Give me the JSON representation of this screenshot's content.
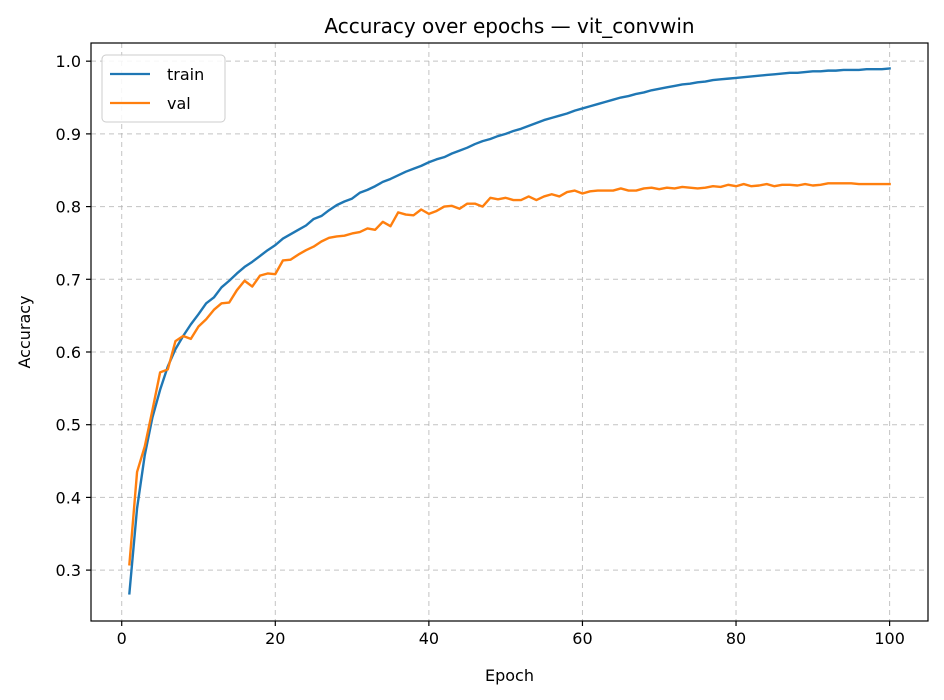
{
  "chart_data": {
    "type": "line",
    "title": "Accuracy over epochs — vit_convwin",
    "xlabel": "Epoch",
    "ylabel": "Accuracy",
    "xlim": [
      -4,
      105
    ],
    "ylim": [
      0.23,
      1.025
    ],
    "xticks": [
      0,
      20,
      40,
      60,
      80,
      100
    ],
    "yticks": [
      0.3,
      0.4,
      0.5,
      0.6,
      0.7,
      0.8,
      0.9,
      1.0
    ],
    "ytick_labels": [
      "0.3",
      "0.4",
      "0.5",
      "0.6",
      "0.7",
      "0.8",
      "0.9",
      "1.0"
    ],
    "grid": true,
    "legend_position": "top-left",
    "x": [
      1,
      2,
      3,
      4,
      5,
      6,
      7,
      8,
      9,
      10,
      11,
      12,
      13,
      14,
      15,
      16,
      17,
      18,
      19,
      20,
      21,
      22,
      23,
      24,
      25,
      26,
      27,
      28,
      29,
      30,
      31,
      32,
      33,
      34,
      35,
      36,
      37,
      38,
      39,
      40,
      41,
      42,
      43,
      44,
      45,
      46,
      47,
      48,
      49,
      50,
      51,
      52,
      53,
      54,
      55,
      56,
      57,
      58,
      59,
      60,
      61,
      62,
      63,
      64,
      65,
      66,
      67,
      68,
      69,
      70,
      71,
      72,
      73,
      74,
      75,
      76,
      77,
      78,
      79,
      80,
      81,
      82,
      83,
      84,
      85,
      86,
      87,
      88,
      89,
      90,
      91,
      92,
      93,
      94,
      95,
      96,
      97,
      98,
      99,
      100
    ],
    "series": [
      {
        "name": "train",
        "color": "#1f77b4",
        "values": [
          0.268,
          0.385,
          0.458,
          0.51,
          0.548,
          0.58,
          0.604,
          0.622,
          0.638,
          0.652,
          0.667,
          0.675,
          0.689,
          0.698,
          0.708,
          0.717,
          0.724,
          0.732,
          0.74,
          0.747,
          0.756,
          0.762,
          0.768,
          0.774,
          0.783,
          0.787,
          0.795,
          0.802,
          0.807,
          0.811,
          0.819,
          0.823,
          0.828,
          0.834,
          0.838,
          0.843,
          0.848,
          0.852,
          0.856,
          0.861,
          0.865,
          0.868,
          0.873,
          0.877,
          0.881,
          0.886,
          0.89,
          0.893,
          0.897,
          0.9,
          0.904,
          0.907,
          0.911,
          0.915,
          0.919,
          0.922,
          0.925,
          0.928,
          0.932,
          0.935,
          0.938,
          0.941,
          0.944,
          0.947,
          0.95,
          0.952,
          0.955,
          0.957,
          0.96,
          0.962,
          0.964,
          0.966,
          0.968,
          0.969,
          0.971,
          0.972,
          0.974,
          0.975,
          0.976,
          0.977,
          0.978,
          0.979,
          0.98,
          0.981,
          0.982,
          0.983,
          0.984,
          0.984,
          0.985,
          0.986,
          0.986,
          0.987,
          0.987,
          0.988,
          0.988,
          0.988,
          0.989,
          0.989,
          0.989,
          0.99
        ]
      },
      {
        "name": "val",
        "color": "#ff7f0e",
        "values": [
          0.308,
          0.435,
          0.47,
          0.52,
          0.572,
          0.576,
          0.615,
          0.622,
          0.618,
          0.635,
          0.645,
          0.658,
          0.667,
          0.668,
          0.685,
          0.698,
          0.69,
          0.705,
          0.708,
          0.707,
          0.726,
          0.727,
          0.734,
          0.74,
          0.745,
          0.752,
          0.757,
          0.759,
          0.76,
          0.763,
          0.765,
          0.77,
          0.768,
          0.779,
          0.773,
          0.792,
          0.789,
          0.788,
          0.796,
          0.79,
          0.794,
          0.8,
          0.801,
          0.797,
          0.804,
          0.804,
          0.8,
          0.812,
          0.81,
          0.812,
          0.809,
          0.809,
          0.814,
          0.809,
          0.814,
          0.817,
          0.814,
          0.82,
          0.822,
          0.818,
          0.821,
          0.822,
          0.822,
          0.822,
          0.825,
          0.822,
          0.822,
          0.825,
          0.826,
          0.824,
          0.826,
          0.825,
          0.827,
          0.826,
          0.825,
          0.826,
          0.828,
          0.827,
          0.83,
          0.828,
          0.831,
          0.828,
          0.829,
          0.831,
          0.828,
          0.83,
          0.83,
          0.829,
          0.831,
          0.829,
          0.83,
          0.832,
          0.832,
          0.832,
          0.832,
          0.831,
          0.831,
          0.831,
          0.831,
          0.831
        ]
      }
    ]
  }
}
